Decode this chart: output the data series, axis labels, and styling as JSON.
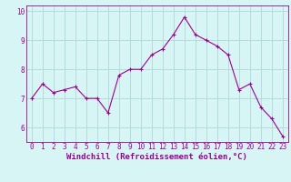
{
  "hours": [
    0,
    1,
    2,
    3,
    4,
    5,
    6,
    7,
    8,
    9,
    10,
    11,
    12,
    13,
    14,
    15,
    16,
    17,
    18,
    19,
    20,
    21,
    22,
    23
  ],
  "values": [
    7.0,
    7.5,
    7.2,
    7.3,
    7.4,
    7.0,
    7.0,
    6.5,
    7.8,
    8.0,
    8.0,
    8.5,
    8.7,
    9.2,
    9.8,
    9.2,
    9.0,
    8.8,
    8.5,
    7.3,
    7.5,
    6.7,
    6.3,
    5.7
  ],
  "line_color": "#990099",
  "marker": "+",
  "bg_color": "#d8f5f5",
  "grid_color": "#b0d8d8",
  "xlabel": "Windchill (Refroidissement éolien,°C)",
  "xlim": [
    -0.5,
    23.5
  ],
  "ylim": [
    5.5,
    10.2
  ],
  "yticks": [
    6,
    7,
    8,
    9,
    10
  ],
  "xticks": [
    0,
    1,
    2,
    3,
    4,
    5,
    6,
    7,
    8,
    9,
    10,
    11,
    12,
    13,
    14,
    15,
    16,
    17,
    18,
    19,
    20,
    21,
    22,
    23
  ],
  "tick_fontsize": 5.5,
  "label_fontsize": 6.5
}
